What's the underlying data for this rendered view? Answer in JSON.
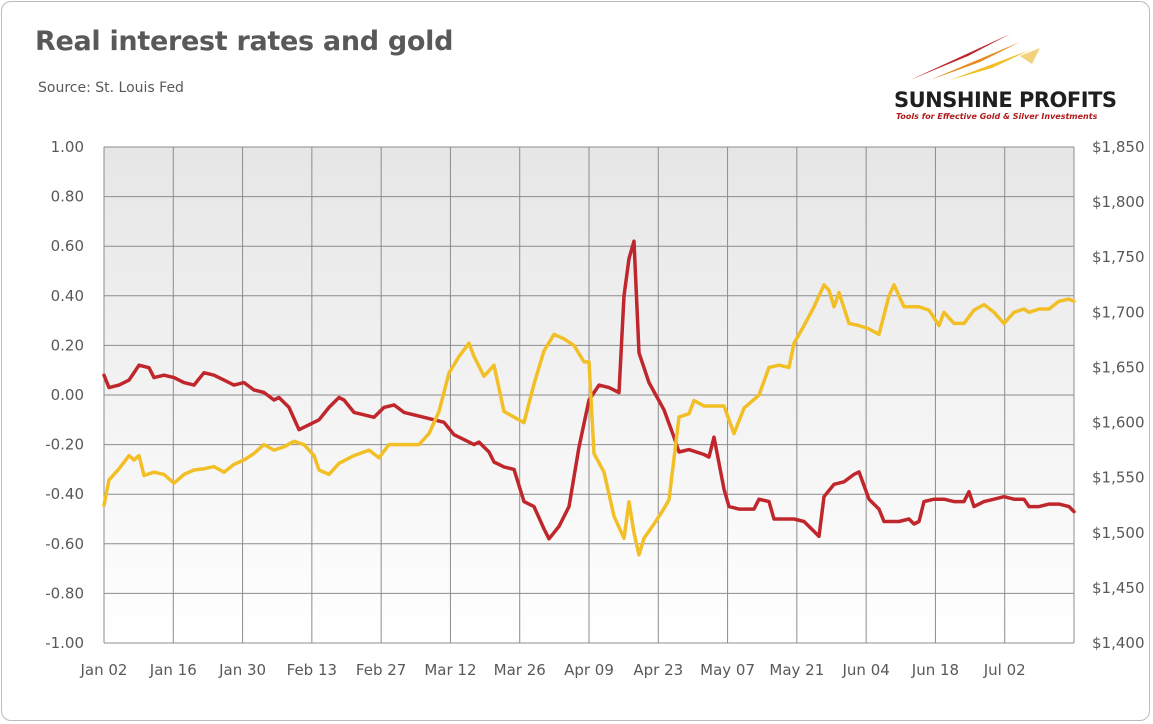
{
  "header": {
    "title": "Real interest rates and gold",
    "source": "Source: St. Louis Fed"
  },
  "logo": {
    "name": "SUNSHINE PROFITS",
    "tagline": "Tools for Effective Gold & Silver Investments",
    "colors": {
      "red": "#c0272d",
      "gold": "#e8a317",
      "orange": "#e58a1f"
    }
  },
  "chart_data": {
    "type": "line",
    "title": "Real interest rates and gold",
    "x_tick_labels": [
      "Jan 02",
      "Jan 16",
      "Jan 30",
      "Feb 13",
      "Feb 27",
      "Mar 12",
      "Mar 26",
      "Apr 09",
      "Apr 23",
      "May 07",
      "May 21",
      "Jun 04",
      "Jun 18",
      "Jul 02"
    ],
    "y_left": {
      "range": [
        -1.0,
        1.0
      ],
      "ticks": [
        "1.00",
        "0.80",
        "0.60",
        "0.40",
        "0.20",
        "0.00",
        "-0.20",
        "-0.40",
        "-0.60",
        "-0.80",
        "-1.00"
      ]
    },
    "y_right": {
      "range": [
        1400,
        1850
      ],
      "ticks": [
        "$1,850",
        "$1,800",
        "$1,750",
        "$1,700",
        "$1,650",
        "$1,600",
        "$1,550",
        "$1,500",
        "$1,450",
        "$1,400"
      ]
    },
    "grid": true,
    "x_range": [
      0,
      194
    ],
    "series": [
      {
        "color": "#c0272d",
        "axis": "left",
        "points": [
          [
            0,
            0.08
          ],
          [
            1,
            0.03
          ],
          [
            3,
            0.04
          ],
          [
            5,
            0.06
          ],
          [
            7,
            0.12
          ],
          [
            9,
            0.11
          ],
          [
            10,
            0.07
          ],
          [
            12,
            0.08
          ],
          [
            14,
            0.07
          ],
          [
            16,
            0.05
          ],
          [
            18,
            0.04
          ],
          [
            20,
            0.09
          ],
          [
            22,
            0.08
          ],
          [
            24,
            0.06
          ],
          [
            26,
            0.04
          ],
          [
            28,
            0.05
          ],
          [
            30,
            0.02
          ],
          [
            32,
            0.01
          ],
          [
            34,
            -0.02
          ],
          [
            35,
            -0.01
          ],
          [
            37,
            -0.05
          ],
          [
            39,
            -0.14
          ],
          [
            41,
            -0.12
          ],
          [
            43,
            -0.1
          ],
          [
            45,
            -0.05
          ],
          [
            47,
            -0.01
          ],
          [
            48,
            -0.02
          ],
          [
            50,
            -0.07
          ],
          [
            52,
            -0.08
          ],
          [
            54,
            -0.09
          ],
          [
            56,
            -0.05
          ],
          [
            58,
            -0.04
          ],
          [
            60,
            -0.07
          ],
          [
            64,
            -0.09
          ],
          [
            66,
            -0.1
          ],
          [
            68,
            -0.11
          ],
          [
            70,
            -0.16
          ],
          [
            72,
            -0.18
          ],
          [
            74,
            -0.2
          ],
          [
            75,
            -0.19
          ],
          [
            77,
            -0.23
          ],
          [
            78,
            -0.27
          ],
          [
            80,
            -0.29
          ],
          [
            82,
            -0.3
          ],
          [
            84,
            -0.43
          ],
          [
            86,
            -0.45
          ],
          [
            88,
            -0.54
          ],
          [
            89,
            -0.58
          ],
          [
            91,
            -0.53
          ],
          [
            93,
            -0.45
          ],
          [
            95,
            -0.21
          ],
          [
            97,
            -0.02
          ],
          [
            99,
            0.04
          ],
          [
            101,
            0.03
          ],
          [
            103,
            0.01
          ],
          [
            104,
            0.4
          ],
          [
            105,
            0.55
          ],
          [
            106,
            0.62
          ],
          [
            107,
            0.17
          ],
          [
            109,
            0.05
          ],
          [
            112,
            -0.06
          ],
          [
            114,
            -0.17
          ],
          [
            115,
            -0.23
          ],
          [
            117,
            -0.22
          ],
          [
            120,
            -0.24
          ],
          [
            121,
            -0.25
          ],
          [
            122,
            -0.17
          ],
          [
            124,
            -0.38
          ],
          [
            125,
            -0.45
          ],
          [
            127,
            -0.46
          ],
          [
            130,
            -0.46
          ],
          [
            131,
            -0.42
          ],
          [
            133,
            -0.43
          ],
          [
            134,
            -0.5
          ],
          [
            138,
            -0.5
          ],
          [
            140,
            -0.51
          ],
          [
            142,
            -0.55
          ],
          [
            143,
            -0.57
          ],
          [
            144,
            -0.41
          ],
          [
            146,
            -0.36
          ],
          [
            148,
            -0.35
          ],
          [
            150,
            -0.32
          ],
          [
            151,
            -0.31
          ],
          [
            153,
            -0.42
          ],
          [
            155,
            -0.46
          ],
          [
            156,
            -0.51
          ],
          [
            159,
            -0.51
          ],
          [
            161,
            -0.5
          ],
          [
            162,
            -0.52
          ],
          [
            163,
            -0.51
          ],
          [
            164,
            -0.43
          ],
          [
            166,
            -0.42
          ],
          [
            168,
            -0.42
          ],
          [
            170,
            -0.43
          ],
          [
            172,
            -0.43
          ],
          [
            173,
            -0.39
          ],
          [
            174,
            -0.45
          ],
          [
            176,
            -0.43
          ],
          [
            178,
            -0.42
          ],
          [
            180,
            -0.41
          ],
          [
            182,
            -0.42
          ],
          [
            184,
            -0.42
          ],
          [
            185,
            -0.45
          ],
          [
            187,
            -0.45
          ],
          [
            189,
            -0.44
          ],
          [
            191,
            -0.44
          ],
          [
            193,
            -0.45
          ],
          [
            194,
            -0.47
          ]
        ]
      },
      {
        "color": "#f2bf26",
        "axis": "right",
        "points": [
          [
            0,
            1525
          ],
          [
            1,
            1548
          ],
          [
            3,
            1558
          ],
          [
            5,
            1570
          ],
          [
            6,
            1566
          ],
          [
            7,
            1570
          ],
          [
            8,
            1552
          ],
          [
            10,
            1555
          ],
          [
            12,
            1553
          ],
          [
            14,
            1545
          ],
          [
            16,
            1553
          ],
          [
            18,
            1557
          ],
          [
            20,
            1558
          ],
          [
            22,
            1560
          ],
          [
            24,
            1555
          ],
          [
            26,
            1562
          ],
          [
            28,
            1566
          ],
          [
            30,
            1572
          ],
          [
            32,
            1580
          ],
          [
            34,
            1575
          ],
          [
            36,
            1578
          ],
          [
            38,
            1583
          ],
          [
            40,
            1580
          ],
          [
            42,
            1570
          ],
          [
            43,
            1557
          ],
          [
            45,
            1553
          ],
          [
            47,
            1563
          ],
          [
            50,
            1570
          ],
          [
            53,
            1575
          ],
          [
            55,
            1568
          ],
          [
            57,
            1580
          ],
          [
            59,
            1580
          ],
          [
            61,
            1580
          ],
          [
            63,
            1580
          ],
          [
            65,
            1590
          ],
          [
            67,
            1610
          ],
          [
            69,
            1645
          ],
          [
            71,
            1660
          ],
          [
            73,
            1672
          ],
          [
            74,
            1660
          ],
          [
            76,
            1642
          ],
          [
            78,
            1652
          ],
          [
            80,
            1610
          ],
          [
            84,
            1600
          ],
          [
            86,
            1635
          ],
          [
            88,
            1665
          ],
          [
            90,
            1680
          ],
          [
            92,
            1676
          ],
          [
            94,
            1670
          ],
          [
            96,
            1655
          ],
          [
            97,
            1655
          ],
          [
            98,
            1572
          ],
          [
            100,
            1555
          ],
          [
            102,
            1515
          ],
          [
            104,
            1495
          ],
          [
            105,
            1528
          ],
          [
            106,
            1500
          ],
          [
            107,
            1480
          ],
          [
            108,
            1495
          ],
          [
            110,
            1508
          ],
          [
            112,
            1522
          ],
          [
            113,
            1530
          ],
          [
            115,
            1605
          ],
          [
            117,
            1608
          ],
          [
            118,
            1620
          ],
          [
            120,
            1615
          ],
          [
            122,
            1615
          ],
          [
            124,
            1615
          ],
          [
            126,
            1590
          ],
          [
            128,
            1613
          ],
          [
            131,
            1625
          ],
          [
            133,
            1650
          ],
          [
            135,
            1652
          ],
          [
            137,
            1650
          ],
          [
            138,
            1672
          ],
          [
            140,
            1688
          ],
          [
            142,
            1705
          ],
          [
            144,
            1725
          ],
          [
            145,
            1720
          ],
          [
            146,
            1705
          ],
          [
            147,
            1718
          ],
          [
            149,
            1690
          ],
          [
            151,
            1688
          ],
          [
            153,
            1685
          ],
          [
            155,
            1680
          ],
          [
            157,
            1715
          ],
          [
            158,
            1725
          ],
          [
            160,
            1705
          ],
          [
            163,
            1705
          ],
          [
            165,
            1702
          ],
          [
            167,
            1688
          ],
          [
            168,
            1700
          ],
          [
            170,
            1690
          ],
          [
            172,
            1690
          ],
          [
            174,
            1702
          ],
          [
            176,
            1707
          ],
          [
            178,
            1700
          ],
          [
            180,
            1690
          ],
          [
            182,
            1700
          ],
          [
            184,
            1703
          ],
          [
            185,
            1700
          ],
          [
            187,
            1703
          ],
          [
            189,
            1703
          ],
          [
            191,
            1710
          ],
          [
            193,
            1712
          ],
          [
            194,
            1710
          ]
        ]
      }
    ]
  }
}
